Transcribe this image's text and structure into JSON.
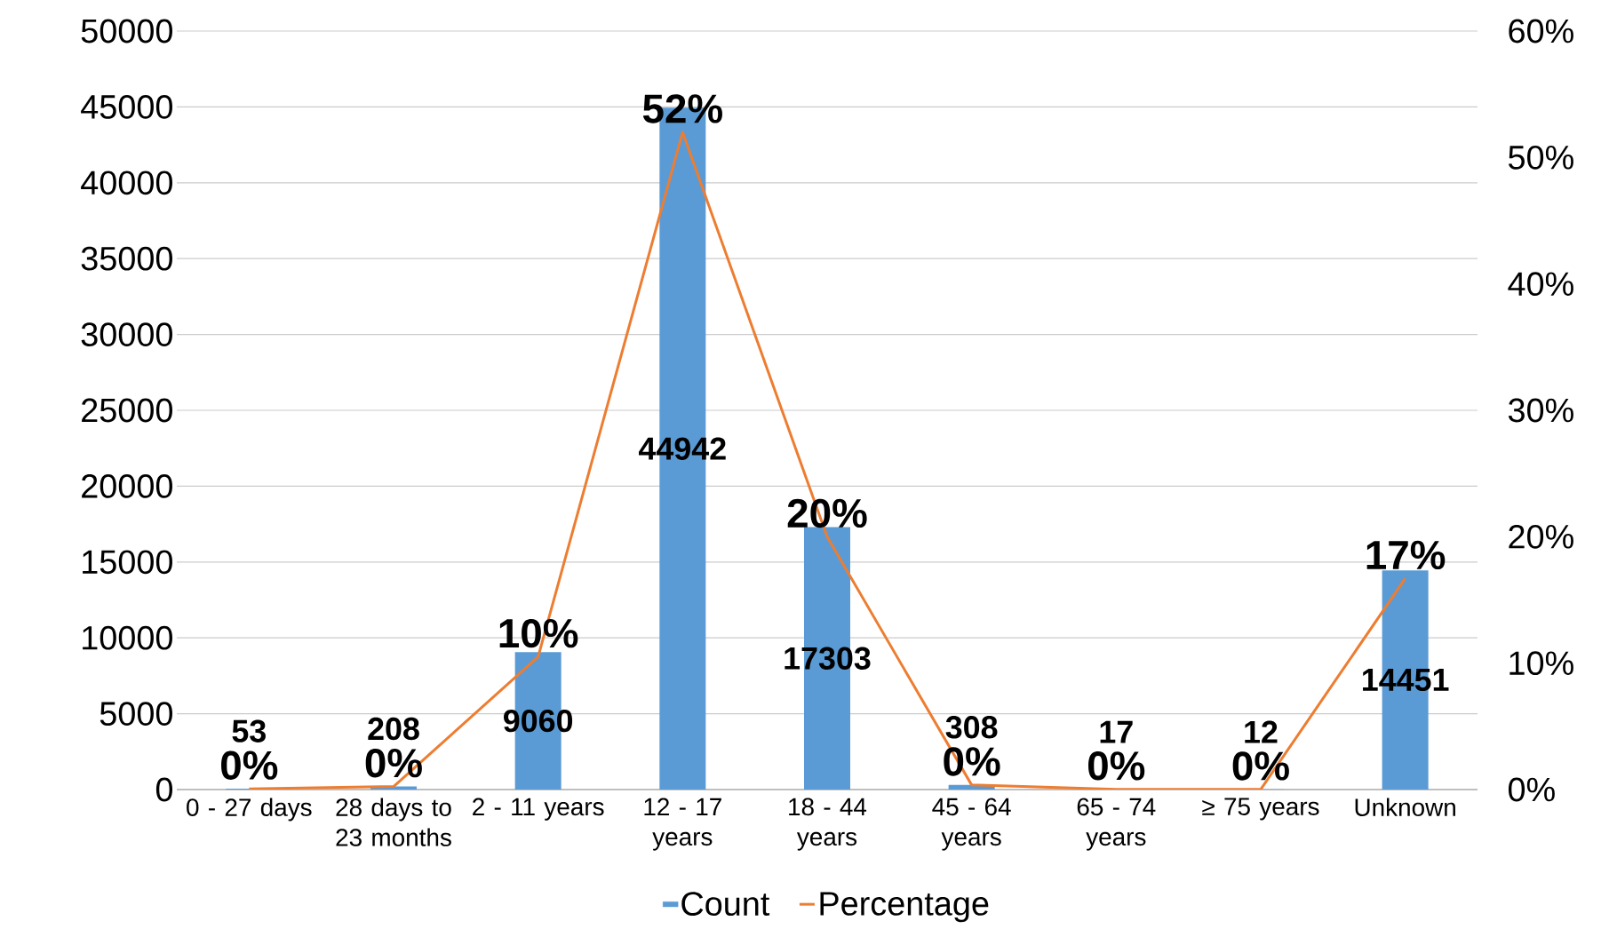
{
  "chart_data": {
    "type": "bar",
    "categories": [
      "0 - 27 days",
      "28 days to 23 months",
      "2 - 11 years",
      "12 - 17 years",
      "18 - 44 years",
      "45 - 64 years",
      "65 - 74 years",
      "≥ 75 years",
      "Unknown"
    ],
    "series": [
      {
        "name": "Count",
        "color": "#5b9bd5",
        "values": [
          53,
          208,
          9060,
          44942,
          17303,
          308,
          17,
          12,
          14451
        ],
        "data_labels": true
      },
      {
        "name": "Percentage",
        "type": "line",
        "axis": "y2",
        "color": "#ed7d31",
        "values": [
          0.06,
          0.24,
          10.5,
          52.0,
          20.0,
          0.36,
          0.02,
          0.01,
          16.7
        ],
        "value_labels": [
          "0%",
          "0%",
          "10%",
          "52%",
          "20%",
          "0%",
          "0%",
          "0%",
          "17%"
        ]
      }
    ],
    "ylim": [
      0,
      50000
    ],
    "yticks": [
      0,
      5000,
      10000,
      15000,
      20000,
      25000,
      30000,
      35000,
      40000,
      45000,
      50000
    ],
    "y2lim": [
      0,
      60
    ],
    "y2ticks": [
      {
        "value": 0,
        "label": "0%"
      },
      {
        "value": 10,
        "label": "10%"
      },
      {
        "value": 20,
        "label": "20%"
      },
      {
        "value": 30,
        "label": "30%"
      },
      {
        "value": 40,
        "label": "40%"
      },
      {
        "value": 50,
        "label": "50%"
      },
      {
        "value": 60,
        "label": "60%"
      }
    ],
    "grid": "y",
    "legend": "bottom",
    "marker": "none"
  }
}
